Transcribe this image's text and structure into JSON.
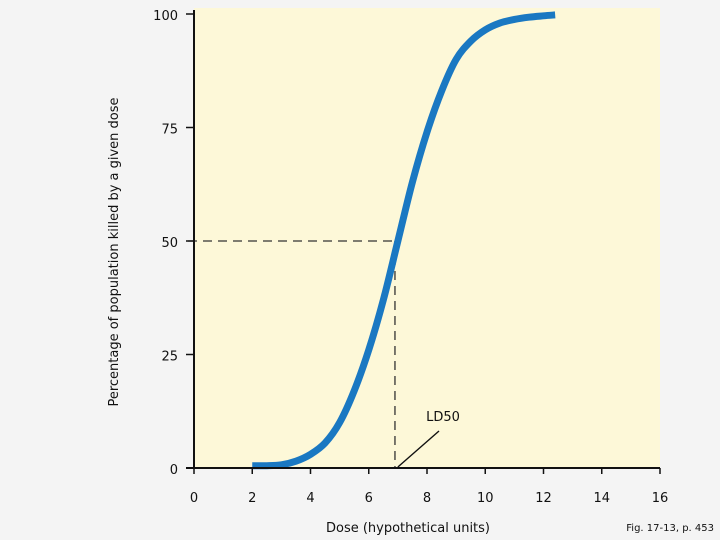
{
  "chart_data": {
    "type": "line",
    "title": "",
    "xlabel": "Dose (hypothetical units)",
    "ylabel": "Percentage of population killed by a given dose",
    "xlim": [
      0,
      16
    ],
    "ylim": [
      0,
      100
    ],
    "x_ticks": [
      "0",
      "2",
      "4",
      "6",
      "8",
      "10",
      "12",
      "14",
      "16"
    ],
    "y_ticks": [
      "0",
      "25",
      "50",
      "75",
      "100"
    ],
    "series": [
      {
        "x": [
          2,
          2.5,
          3,
          3.5,
          4,
          4.5,
          5,
          5.5,
          6,
          6.5,
          7,
          7.5,
          8,
          8.5,
          9,
          9.5,
          10,
          10.5,
          11,
          11.5,
          12,
          12.4
        ],
        "values": [
          0.5,
          0.5,
          0.7,
          1.5,
          3,
          5.5,
          10,
          17,
          26,
          37,
          50,
          63,
          74,
          83,
          90,
          94,
          96.5,
          98,
          98.8,
          99.3,
          99.6,
          99.8
        ]
      }
    ],
    "reference_point": {
      "x": 6.9,
      "y": 50
    },
    "annotation": {
      "text": "LD50",
      "x": 7,
      "y": 0
    },
    "grid": false,
    "background_color": "#fdf8d8",
    "line_color": "#1a78c2"
  },
  "credit": "Fig. 17-13, p. 453"
}
